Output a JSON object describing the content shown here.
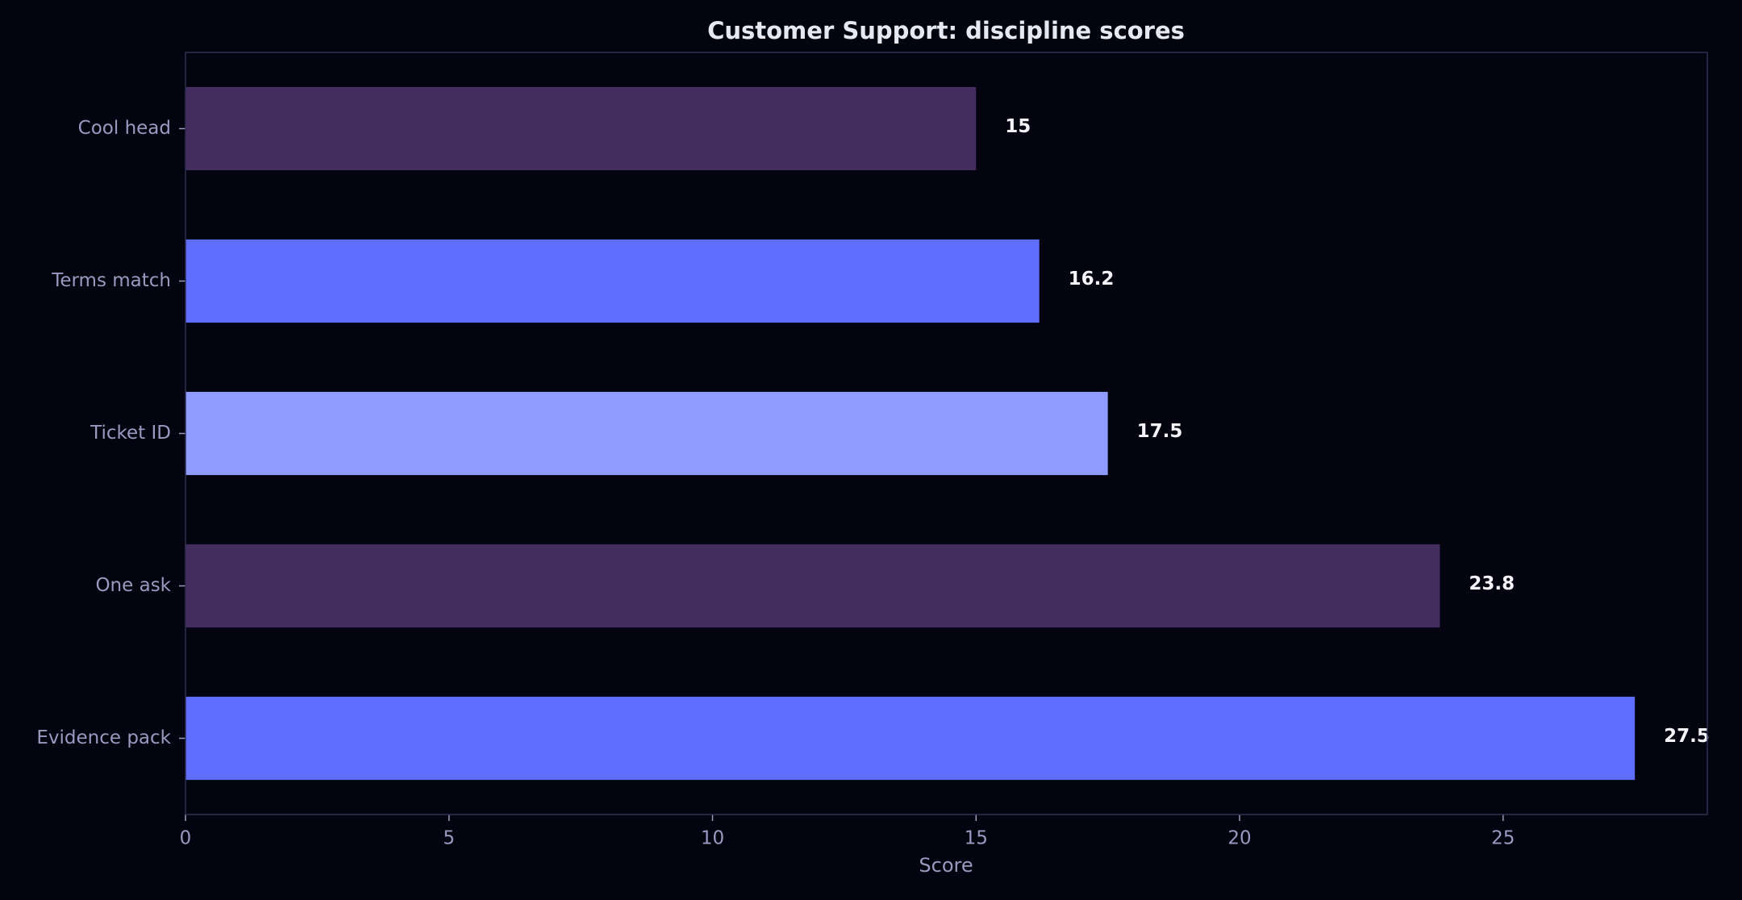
{
  "chart_data": {
    "type": "barh",
    "title": "Customer Support: discipline scores",
    "x_label": "Score",
    "categories": [
      "Cool head",
      "Terms match",
      "Ticket ID",
      "One ask",
      "Evidence pack"
    ],
    "values": [
      15,
      16.2,
      17.5,
      23.8,
      27.5
    ],
    "colors": [
      "#432d5e",
      "#5f6dff",
      "#8f9bff",
      "#432d5e",
      "#5f6dff"
    ],
    "xlim": [
      0,
      28.875
    ],
    "xticks": [
      0,
      5,
      10,
      15,
      20,
      25
    ],
    "grid": false
  }
}
